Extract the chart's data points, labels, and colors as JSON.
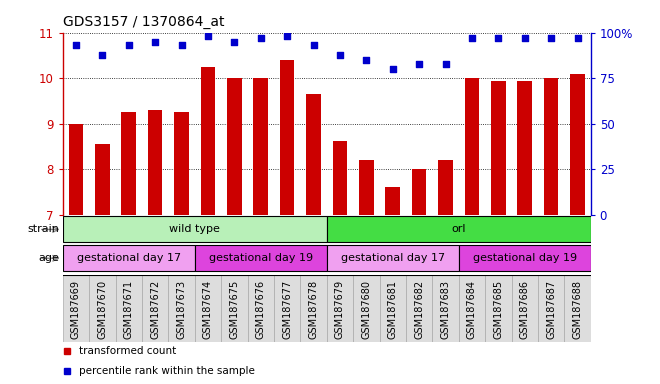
{
  "title": "GDS3157 / 1370864_at",
  "samples": [
    "GSM187669",
    "GSM187670",
    "GSM187671",
    "GSM187672",
    "GSM187673",
    "GSM187674",
    "GSM187675",
    "GSM187676",
    "GSM187677",
    "GSM187678",
    "GSM187679",
    "GSM187680",
    "GSM187681",
    "GSM187682",
    "GSM187683",
    "GSM187684",
    "GSM187685",
    "GSM187686",
    "GSM187687",
    "GSM187688"
  ],
  "bar_values": [
    9.0,
    8.55,
    9.25,
    9.3,
    9.25,
    10.25,
    10.0,
    10.0,
    10.4,
    9.65,
    8.62,
    8.2,
    7.62,
    8.0,
    8.2,
    10.0,
    9.95,
    9.95,
    10.0,
    10.1
  ],
  "percentile_values": [
    93,
    88,
    93,
    95,
    93,
    98,
    95,
    97,
    98,
    93,
    88,
    85,
    80,
    83,
    83,
    97,
    97,
    97,
    97,
    97
  ],
  "ylim_left": [
    7,
    11
  ],
  "ylim_right": [
    0,
    100
  ],
  "yticks_left": [
    7,
    8,
    9,
    10,
    11
  ],
  "yticks_right": [
    0,
    25,
    50,
    75,
    100
  ],
  "bar_color": "#cc0000",
  "dot_color": "#0000cc",
  "strain_groups": [
    {
      "label": "wild type",
      "start": 0,
      "end": 9,
      "color": "#b8f0b8"
    },
    {
      "label": "orl",
      "start": 10,
      "end": 19,
      "color": "#44dd44"
    }
  ],
  "age_groups": [
    {
      "label": "gestational day 17",
      "start": 0,
      "end": 4,
      "color": "#f0a0f0"
    },
    {
      "label": "gestational day 19",
      "start": 5,
      "end": 9,
      "color": "#dd44dd"
    },
    {
      "label": "gestational day 17",
      "start": 10,
      "end": 14,
      "color": "#f0a0f0"
    },
    {
      "label": "gestational day 19",
      "start": 15,
      "end": 19,
      "color": "#dd44dd"
    }
  ],
  "legend_red_label": "transformed count",
  "legend_blue_label": "percentile rank within the sample",
  "background_color": "#ffffff",
  "title_fontsize": 10,
  "axis_label_fontsize": 8.5,
  "tick_label_fontsize": 7.0,
  "row_label_fontsize": 8.0,
  "legend_fontsize": 7.5,
  "xtick_label_color": "#444444",
  "xtick_bg_color": "#dddddd"
}
